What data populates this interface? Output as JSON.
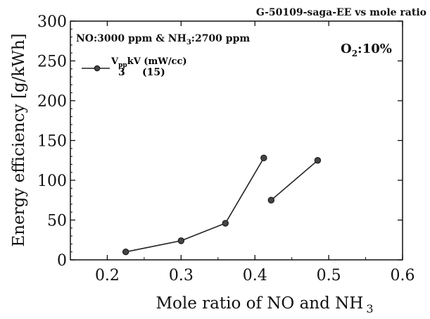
{
  "chart_data": {
    "type": "line",
    "title": "G-50109-saga-EE vs mole ratio",
    "xlabel": "Mole ratio of NO and NH",
    "xlabel_sub": "3",
    "ylabel": "Energy efficiency [g/kWh]",
    "xlim": [
      0.15,
      0.6
    ],
    "ylim": [
      0,
      300
    ],
    "x_ticks": [
      "0.2",
      "0.3",
      "0.4",
      "0.5",
      "0.6"
    ],
    "x_tick_values": [
      0.2,
      0.3,
      0.4,
      0.5,
      0.6
    ],
    "y_ticks": [
      "0",
      "50",
      "100",
      "150",
      "200",
      "250",
      "300"
    ],
    "y_tick_values": [
      0,
      50,
      100,
      150,
      200,
      250,
      300
    ],
    "annotations": {
      "conditions_a": "NO:3000 ppm & NH",
      "conditions_sub": "3",
      "conditions_b": ":2700 ppm",
      "oxygen_a": "O",
      "oxygen_sub": "2",
      "oxygen_b": ":10%"
    },
    "legend": {
      "placement": "top-left",
      "header_a": "V",
      "header_sub": "pp",
      "header_b": "kV (mW/cc)",
      "entry_voltage": "3",
      "entry_power": "(15)"
    },
    "series": [
      {
        "segments": [
          [
            [
              0.225,
              10
            ],
            [
              0.3,
              24
            ],
            [
              0.36,
              46
            ],
            [
              0.412,
              128
            ]
          ],
          [
            [
              0.422,
              75
            ],
            [
              0.485,
              125
            ]
          ]
        ],
        "color": "#222222"
      }
    ]
  }
}
